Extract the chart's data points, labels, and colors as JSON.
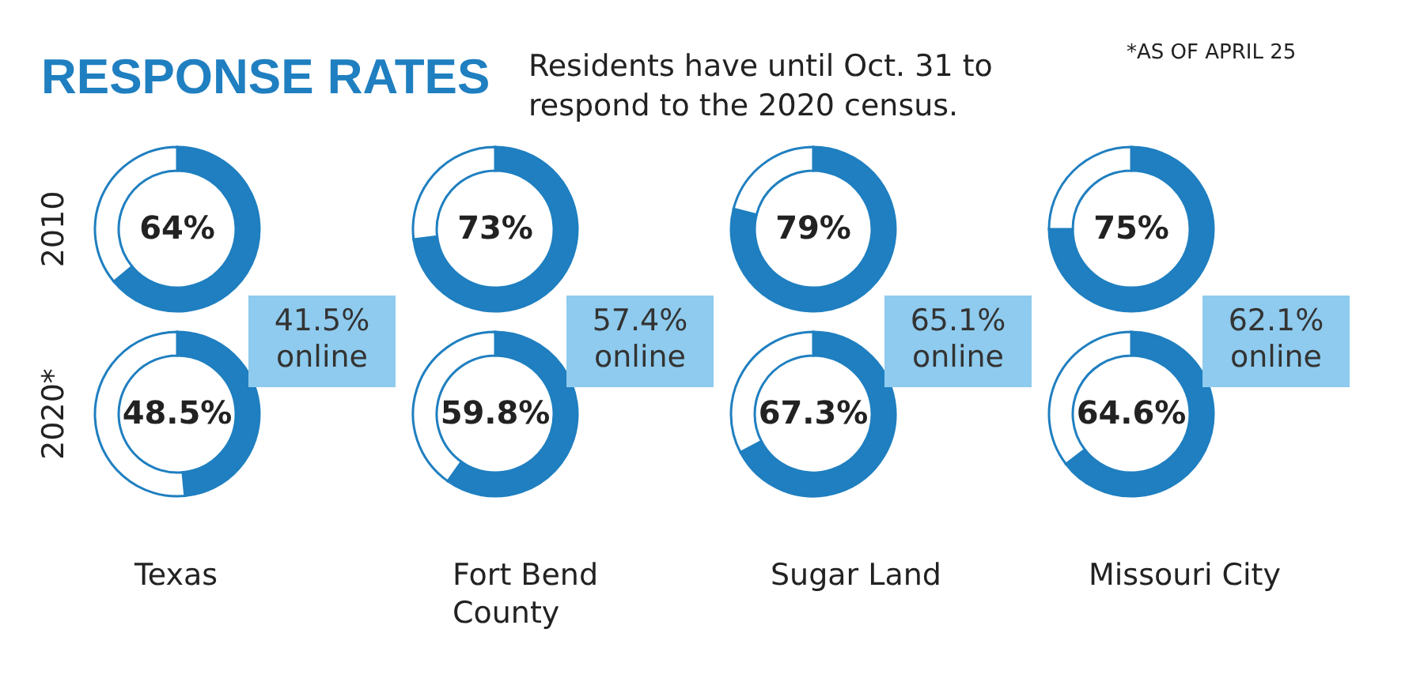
{
  "chart_data": [
    {
      "type": "donut",
      "title": "RESPONSE RATES",
      "annotations": [
        "*AS OF APRIL 25"
      ],
      "ylabel": "2010",
      "categories": [
        null,
        null
      ],
      "values": [
        64,
        36
      ],
      "value_labels": [
        "64%",
        null
      ],
      "colors": [
        "#1f7fc0",
        "#ffffff"
      ]
    },
    {
      "type": "donut",
      "subtitle": "Residents have until Oct. 31 to respond to the 2020 census.",
      "categories": [
        null,
        null
      ],
      "values": [
        73,
        27
      ],
      "value_labels": [
        "73%",
        null
      ],
      "colors": [
        "#1f7fc0",
        "#ffffff"
      ]
    },
    {
      "type": "donut",
      "categories": [
        null,
        null
      ],
      "values": [
        79,
        21
      ],
      "value_labels": [
        "79%",
        null
      ],
      "colors": [
        "#1f7fc0",
        "#ffffff"
      ]
    },
    {
      "type": "donut",
      "categories": [
        null,
        null
      ],
      "values": [
        75,
        25
      ],
      "value_labels": [
        "75%",
        null
      ],
      "colors": [
        "#1f7fc0",
        "#ffffff"
      ]
    },
    {
      "type": "donut",
      "ylabel": "2020*",
      "xlabel": "Texas",
      "annotations": [
        "41.5% online"
      ],
      "categories": [
        null,
        null
      ],
      "values": [
        48.5,
        51.5
      ],
      "value_labels": [
        "48.5%",
        null
      ],
      "colors": [
        "#1f7fc0",
        "#ffffff"
      ]
    },
    {
      "type": "donut",
      "xlabel": "Fort Bend County",
      "annotations": [
        "57.4% online"
      ],
      "categories": [
        null,
        null
      ],
      "values": [
        59.8,
        40.2
      ],
      "value_labels": [
        "59.8%",
        null
      ],
      "colors": [
        "#1f7fc0",
        "#ffffff"
      ]
    },
    {
      "type": "donut",
      "xlabel": "Sugar Land",
      "annotations": [
        "65.1% online"
      ],
      "categories": [
        null,
        null
      ],
      "values": [
        67.3,
        32.7
      ],
      "value_labels": [
        "67.3%",
        null
      ],
      "colors": [
        "#1f7fc0",
        "#ffffff"
      ]
    },
    {
      "type": "donut",
      "xlabel": "Missouri City",
      "annotations": [
        "62.1% online"
      ],
      "categories": [
        null,
        null
      ],
      "values": [
        64.6,
        35.4
      ],
      "value_labels": [
        "64.6%",
        null
      ],
      "colors": [
        "#1f7fc0",
        "#ffffff"
      ]
    }
  ]
}
